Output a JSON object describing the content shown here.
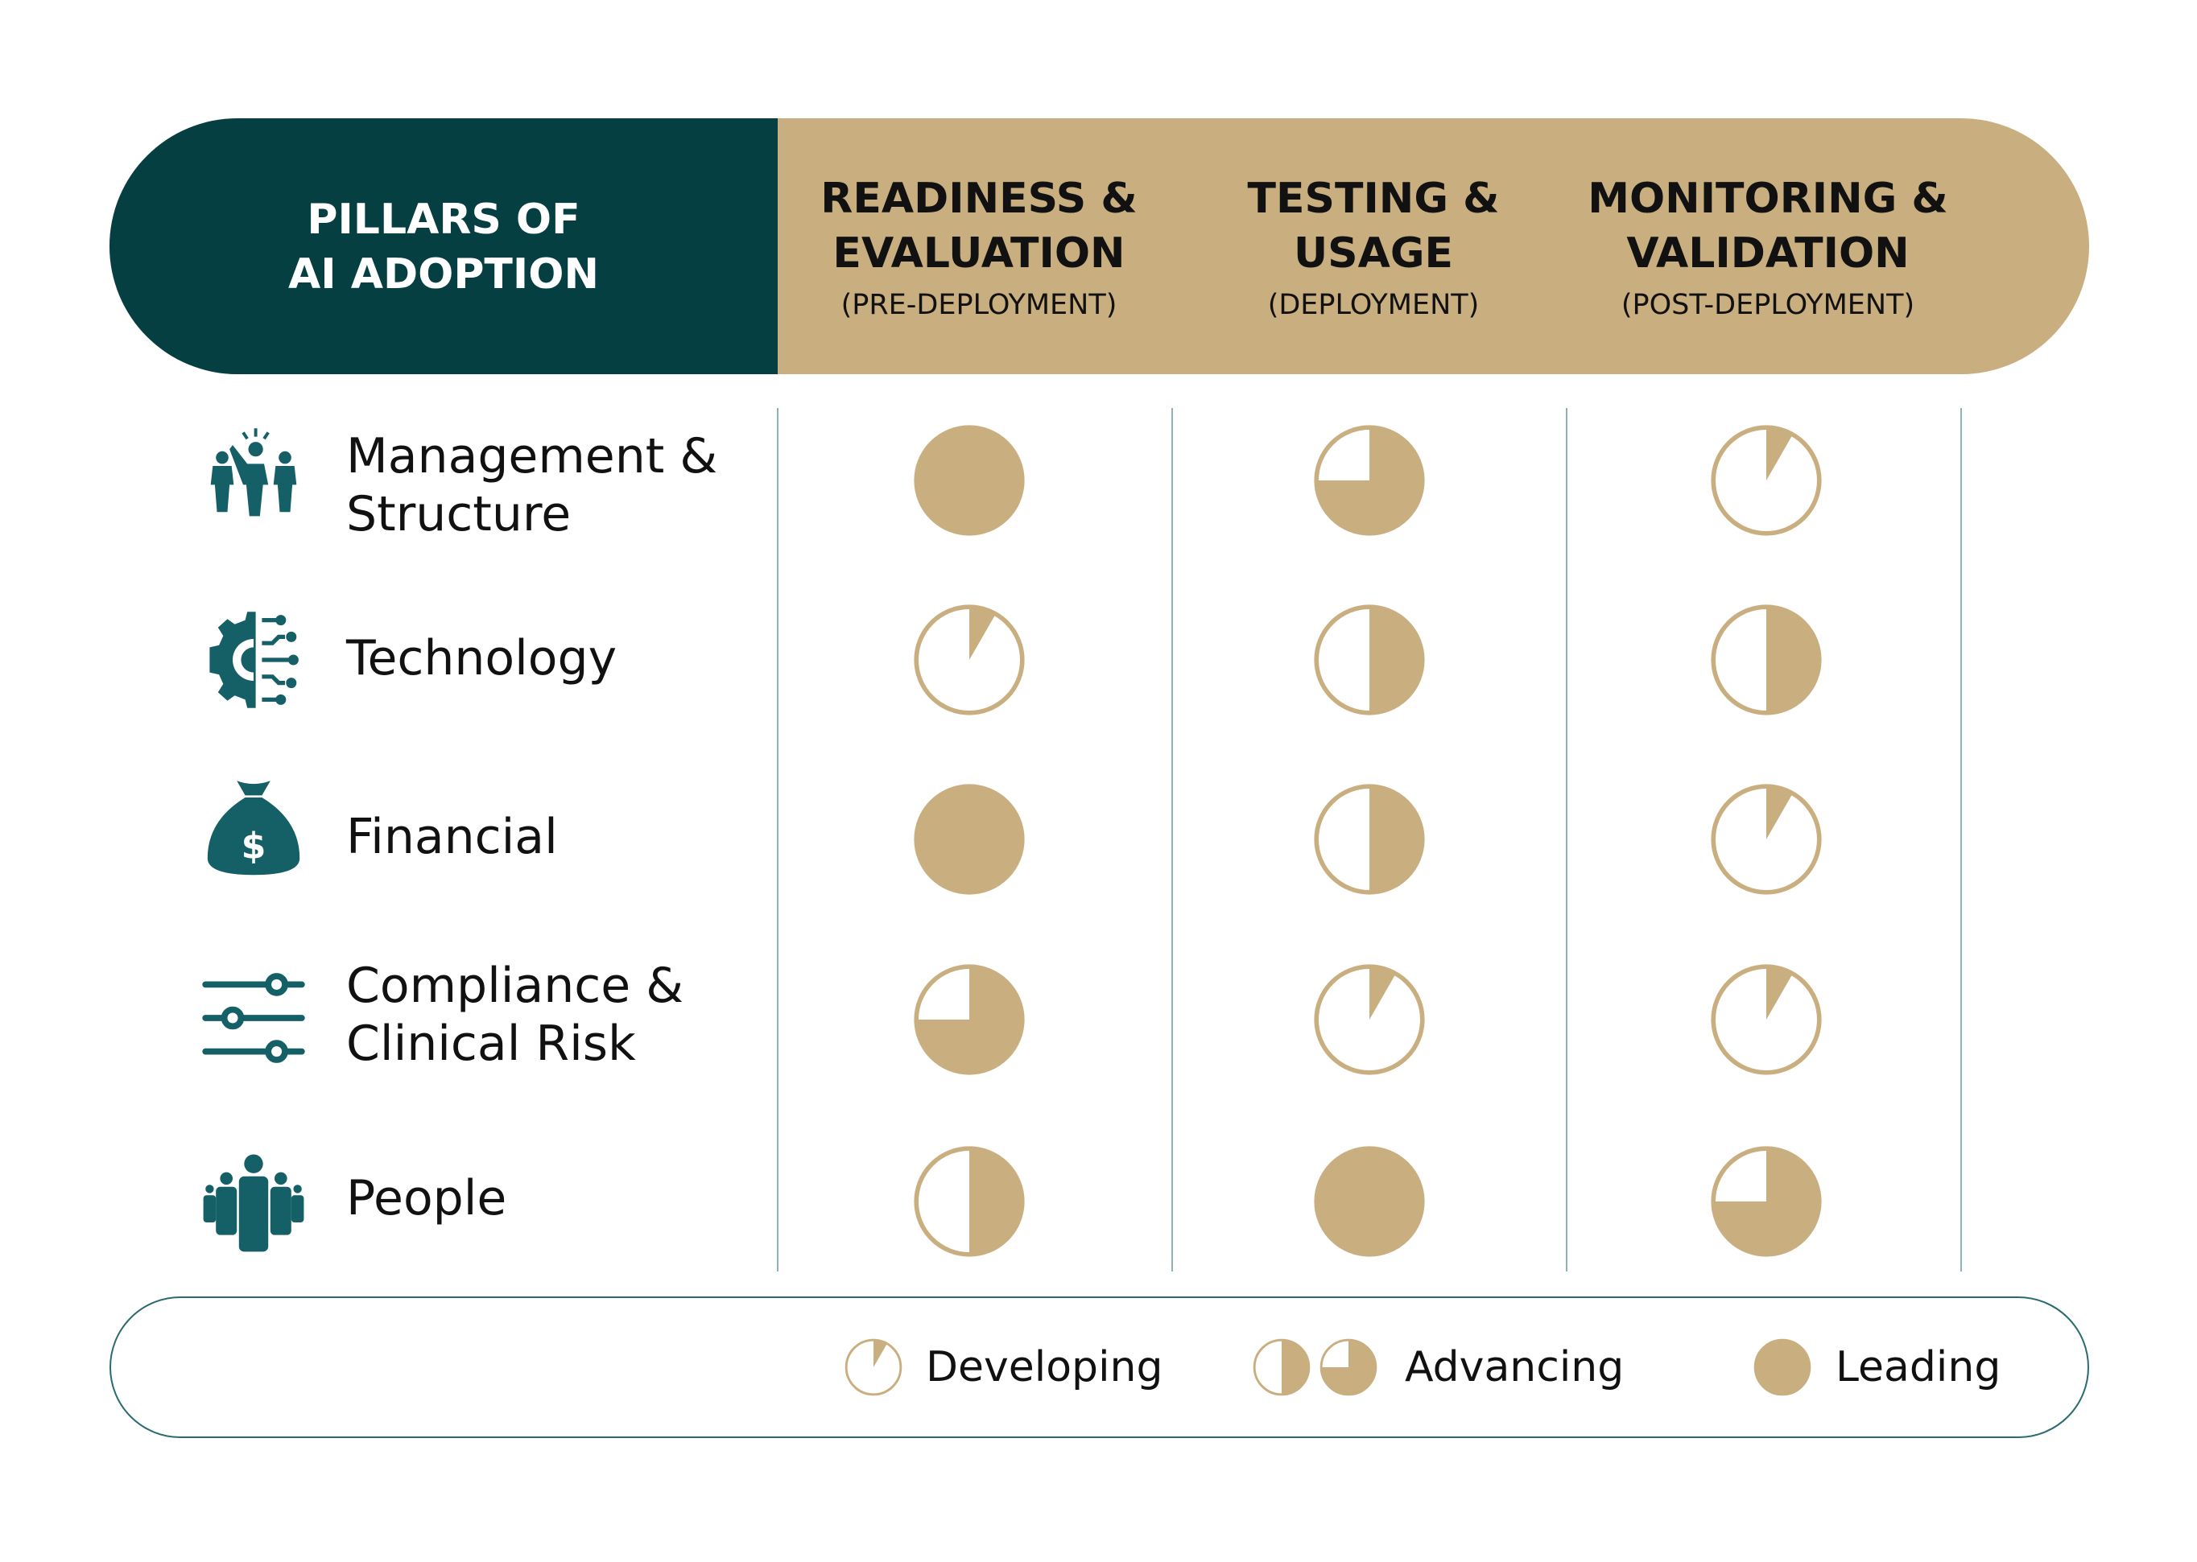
{
  "header": {
    "title_line1": "PILLARS OF",
    "title_line2": "AI ADOPTION",
    "columns": [
      {
        "line1": "READINESS &",
        "line2": "EVALUATION",
        "sub": "(PRE-DEPLOYMENT)"
      },
      {
        "line1": "TESTING &",
        "line2": "USAGE",
        "sub": "(DEPLOYMENT)"
      },
      {
        "line1": "MONITORING &",
        "line2": "VALIDATION",
        "sub": "(POST-DEPLOYMENT)"
      }
    ]
  },
  "rows": [
    {
      "line1": "Management &",
      "line2": "Structure",
      "icon": "management-icon",
      "levels": [
        1,
        0.75,
        0.083
      ]
    },
    {
      "line1": "Technology",
      "line2": "",
      "icon": "technology-gear-icon",
      "levels": [
        0.083,
        0.5,
        0.5
      ]
    },
    {
      "line1": "Financial",
      "line2": "",
      "icon": "money-bag-icon",
      "levels": [
        1,
        0.5,
        0.083
      ]
    },
    {
      "line1": "Compliance &",
      "line2": "Clinical Risk",
      "icon": "sliders-icon",
      "levels": [
        0.75,
        0.083,
        0.083
      ]
    },
    {
      "line1": "People",
      "line2": "",
      "icon": "people-group-icon",
      "levels": [
        0.5,
        1,
        0.75
      ]
    }
  ],
  "legend": {
    "developing": {
      "label": "Developing",
      "levels": [
        0.083
      ]
    },
    "advancing": {
      "label": "Advancing",
      "levels": [
        0.5,
        0.75
      ]
    },
    "leading": {
      "label": "Leading",
      "levels": [
        1
      ]
    }
  },
  "colors": {
    "teal": "#063f42",
    "gold": "#c9ae7f",
    "icon": "#155f66"
  }
}
